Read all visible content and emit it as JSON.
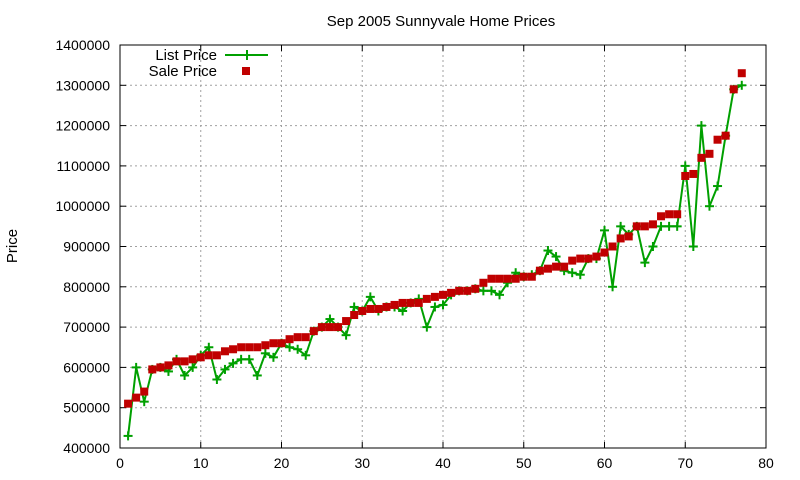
{
  "chart_data": {
    "type": "line",
    "title": "Sep 2005 Sunnyvale Home Prices",
    "xlabel": "",
    "ylabel": "Price",
    "xlim": [
      0,
      80
    ],
    "ylim": [
      400000,
      1400000
    ],
    "xticks": [
      0,
      10,
      20,
      30,
      40,
      50,
      60,
      70,
      80
    ],
    "yticks": [
      400000,
      500000,
      600000,
      700000,
      800000,
      900000,
      1000000,
      1100000,
      1200000,
      1300000,
      1400000
    ],
    "grid": true,
    "legend_position": "top-left",
    "series": [
      {
        "name": "List Price",
        "style": "line-with-plus-markers",
        "color": "#00a000",
        "x": [
          1,
          2,
          3,
          4,
          5,
          6,
          7,
          8,
          9,
          10,
          11,
          12,
          13,
          14,
          15,
          16,
          17,
          18,
          19,
          20,
          21,
          22,
          23,
          24,
          25,
          26,
          27,
          28,
          29,
          30,
          31,
          32,
          33,
          34,
          35,
          36,
          37,
          38,
          39,
          40,
          41,
          42,
          43,
          44,
          45,
          46,
          47,
          48,
          49,
          50,
          51,
          52,
          53,
          54,
          55,
          56,
          57,
          58,
          59,
          60,
          61,
          62,
          63,
          64,
          65,
          66,
          67,
          68,
          69,
          70,
          71,
          72,
          73,
          74,
          75,
          76,
          77
        ],
        "values": [
          430000,
          600000,
          515000,
          595000,
          600000,
          590000,
          620000,
          580000,
          600000,
          630000,
          650000,
          570000,
          595000,
          610000,
          620000,
          620000,
          580000,
          635000,
          625000,
          660000,
          650000,
          645000,
          630000,
          690000,
          700000,
          720000,
          700000,
          680000,
          750000,
          740000,
          775000,
          740000,
          750000,
          750000,
          740000,
          760000,
          770000,
          700000,
          750000,
          755000,
          780000,
          790000,
          790000,
          795000,
          790000,
          790000,
          780000,
          810000,
          835000,
          825000,
          830000,
          840000,
          890000,
          875000,
          840000,
          835000,
          830000,
          870000,
          870000,
          940000,
          800000,
          950000,
          930000,
          950000,
          860000,
          900000,
          950000,
          950000,
          950000,
          1100000,
          900000,
          1200000,
          1000000,
          1050000,
          1175000,
          1290000,
          1300000
        ]
      },
      {
        "name": "Sale Price",
        "style": "square-markers",
        "color": "#c00000",
        "x": [
          1,
          2,
          3,
          4,
          5,
          6,
          7,
          8,
          9,
          10,
          11,
          12,
          13,
          14,
          15,
          16,
          17,
          18,
          19,
          20,
          21,
          22,
          23,
          24,
          25,
          26,
          27,
          28,
          29,
          30,
          31,
          32,
          33,
          34,
          35,
          36,
          37,
          38,
          39,
          40,
          41,
          42,
          43,
          44,
          45,
          46,
          47,
          48,
          49,
          50,
          51,
          52,
          53,
          54,
          55,
          56,
          57,
          58,
          59,
          60,
          61,
          62,
          63,
          64,
          65,
          66,
          67,
          68,
          69,
          70,
          71,
          72,
          73,
          74,
          75,
          76,
          77
        ],
        "values": [
          510000,
          525000,
          540000,
          595000,
          600000,
          605000,
          615000,
          615000,
          620000,
          625000,
          630000,
          630000,
          640000,
          645000,
          650000,
          650000,
          650000,
          655000,
          660000,
          660000,
          670000,
          675000,
          675000,
          690000,
          700000,
          700000,
          700000,
          715000,
          730000,
          740000,
          745000,
          745000,
          750000,
          755000,
          760000,
          760000,
          760000,
          770000,
          775000,
          780000,
          785000,
          790000,
          790000,
          795000,
          810000,
          820000,
          820000,
          820000,
          820000,
          825000,
          825000,
          840000,
          845000,
          850000,
          850000,
          865000,
          870000,
          870000,
          875000,
          885000,
          900000,
          920000,
          925000,
          950000,
          950000,
          955000,
          975000,
          980000,
          980000,
          1075000,
          1080000,
          1120000,
          1130000,
          1165000,
          1175000,
          1290000,
          1330000
        ]
      }
    ]
  }
}
